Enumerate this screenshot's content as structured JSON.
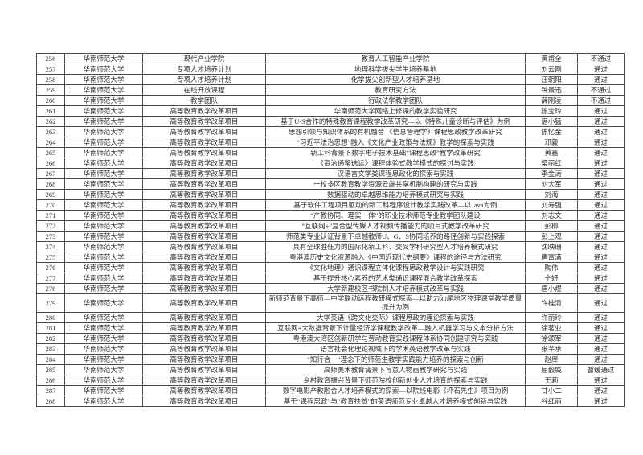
{
  "page": {
    "background_color": "#ffffff",
    "text_color": "#2e2e2e",
    "border_color": "#4a4a4a",
    "description": "scanned approval-result table page, rows 256-288, no visible header row"
  },
  "table": {
    "cell_roles": [
      "row-number",
      "university",
      "project-type",
      "project-title",
      "leader-name",
      "result-status"
    ],
    "status_values_seen": [
      "通过",
      "不通过",
      "暂缓通过"
    ],
    "rows": [
      [
        "256",
        "华南师范大学",
        "现代产业学院",
        "教育人工智能产业学院",
        "黄甫全",
        "不通过"
      ],
      [
        "257",
        "华南师范大学",
        "专项人才培养计划",
        "地理科学拔尖学生培养基地",
        "刘云刚",
        "通过"
      ],
      [
        "258",
        "华南师范大学",
        "专项人才培养计划",
        "化学拔尖创新型人才培养基地",
        "汪朝阳",
        "通过"
      ],
      [
        "259",
        "华南师范大学",
        "在线开放课程",
        "教育研究方法",
        "钟景迅",
        "不通过"
      ],
      [
        "260",
        "华南师范大学",
        "教学团队",
        "行政法学教学团队",
        "薛刚凌",
        "不通过"
      ],
      [
        "261",
        "华南师范大学",
        "高等教育教学改革项目",
        "华南师范大学网络上修课的教学实验研究",
        "陈宝玲",
        "通过"
      ],
      [
        "262",
        "华南师范大学",
        "高等教育教学改革项目",
        "基于U-S合作的特殊教育课程教学改革研究—以《特殊儿童诊断与评估》为例",
        "谌小猛",
        "通过"
      ],
      [
        "263",
        "华南师范大学",
        "高等教育教学改革项目",
        "思想引领与知识体系的有机融合 《信息管理学》课程思政教学改革研究",
        "陈忆金",
        "通过"
      ],
      [
        "264",
        "华南师范大学",
        "高等教育教学改革项目",
        "“习近平法治思想”融入《文化产业政策与法规》教学的探索与实践",
        "邓毅",
        "通过"
      ],
      [
        "265",
        "华南师范大学",
        "高等教育教学改革项目",
        "新工科背景下数字电子技术基础“课程思政”教学改革研究",
        "黄鑫",
        "通过"
      ],
      [
        "266",
        "华南师范大学",
        "高等教育教学改革项目",
        "《资治通鉴选读》课程体验式教学模式的探讨与实践",
        "梁丽红",
        "通过"
      ],
      [
        "267",
        "华南师范大学",
        "高等教育教学改革项目",
        "汉语言文学类课程思政化的探索与实践",
        "李金涛",
        "通过"
      ],
      [
        "268",
        "华南师范大学",
        "高等教育教学改革项目",
        "一校多区教育教学资源云端共享机制构建的研究与实践",
        "刘大军",
        "通过"
      ],
      [
        "269",
        "华南师范大学",
        "高等教育教学改革项目",
        "数据驱动的卓越思维能力培养模式研究与实践",
        "刘海",
        "通过"
      ],
      [
        "270",
        "华南师范大学",
        "高等教育教学改革项目",
        "基于软件工程项目驱动的新工科程序设计教学实践改革—以Java为例",
        "刘寿强",
        "通过"
      ],
      [
        "271",
        "华南师范大学",
        "高等教育教学改革项目",
        "“产教协同、理实一体”的职业技术师范专业教学团队建设",
        "刘志文",
        "通过"
      ],
      [
        "272",
        "华南师范大学",
        "高等教育教学改革项目",
        "“互联网+”复合型传媒人才视频传播能力的项目式教学改革研究",
        "彭柳",
        "通过"
      ],
      [
        "273",
        "华南师范大学",
        "高等教育教学改革项目",
        "师范类专业认证背景下卓越教师U、G、S协同培养的路径创新与实践探索",
        "彭上观",
        "通过"
      ],
      [
        "274",
        "华南师范大学",
        "高等教育教学改革项目",
        "具有全球胜任力的国际化新工科、交叉学科研究型人才培养模式研究",
        "沈映珊",
        "通过"
      ],
      [
        "275",
        "华南师范大学",
        "高等教育教学改革项目",
        "粤港澳历史文化资源融入《中国近现代史纲要》课程的途径与方法研究",
        "唐富满",
        "通过"
      ],
      [
        "276",
        "华南师范大学",
        "高等教育教学改革项目",
        "《文化地理》通识课程立体化课程思政教学设计与实践研究",
        "陶伟",
        "通过"
      ],
      [
        "277",
        "华南师范大学",
        "高等教育教学改革项目",
        "基于提升核心素养的艺术类通识课程混合教学改革探索",
        "仝妍",
        "通过"
      ],
      [
        "278",
        "华南师范大学",
        "高等教育教学改革项目",
        "大学新建校区书院制人才培养模式改革与实践",
        "唐小煜",
        "通过"
      ],
      [
        "279",
        "华南师范大学",
        "高等教育教学改革项目",
        "新师范背景下高师—中学联动远程教研模式探索—以助力汕尾地区物理课堂教学质量提升为例",
        "许桂清",
        "通过"
      ],
      [
        "280",
        "华南师范大学",
        "高等教育教学改革项目",
        "大学英语《跨文化交际》课程思政的理论探索与实践",
        "许丽玲",
        "通过"
      ],
      [
        "281",
        "华南师范大学",
        "高等教育教学改革项目",
        "互联网+大数据背景下计量经济学课程教学改革—融入机器学习与文本分析方法",
        "徐茗业",
        "通过"
      ],
      [
        "282",
        "华南师范大学",
        "高等教育教学改革项目",
        "粤港澳大湾区创新研学与劳动教育实践课程体系协同创建研究与实践",
        "徐颂军",
        "通过"
      ],
      [
        "283",
        "华南师范大学",
        "高等教育教学改革项目",
        "语言社会化理论视域下的学术英语教学改革与实践",
        "张芊承",
        "通过"
      ],
      [
        "284",
        "华南师范大学",
        "高等教育教学改革项目",
        "“知行合一”理念下的师范生教学实践能力培养的探索与创新",
        "赵庠",
        "通过"
      ],
      [
        "285",
        "华南师范大学",
        "高等教育教学改革项目",
        "高师美术教育背景下写意人物画教学研究与实践",
        "屈毅威",
        "暂缓通过"
      ],
      [
        "286",
        "华南师范大学",
        "高等教育教学改革项目",
        "乡村教育振兴背景下师范院校创新创业人才培育的探索与实践",
        "王莉",
        "通过"
      ],
      [
        "287",
        "华南师范大学",
        "高等教育教学改革项目",
        "数字电影产教融合人才培养模式的探索—以院线电影《坪石先生》项目为例",
        "甘小二",
        "通过"
      ],
      [
        "288",
        "华南师范大学",
        "高等教育教学改革项目",
        "基于“课程思政”与“教育扶贫”的英语师范专业卓越人才培养模式创新与实践",
        "谷红丽",
        "通过"
      ]
    ]
  }
}
